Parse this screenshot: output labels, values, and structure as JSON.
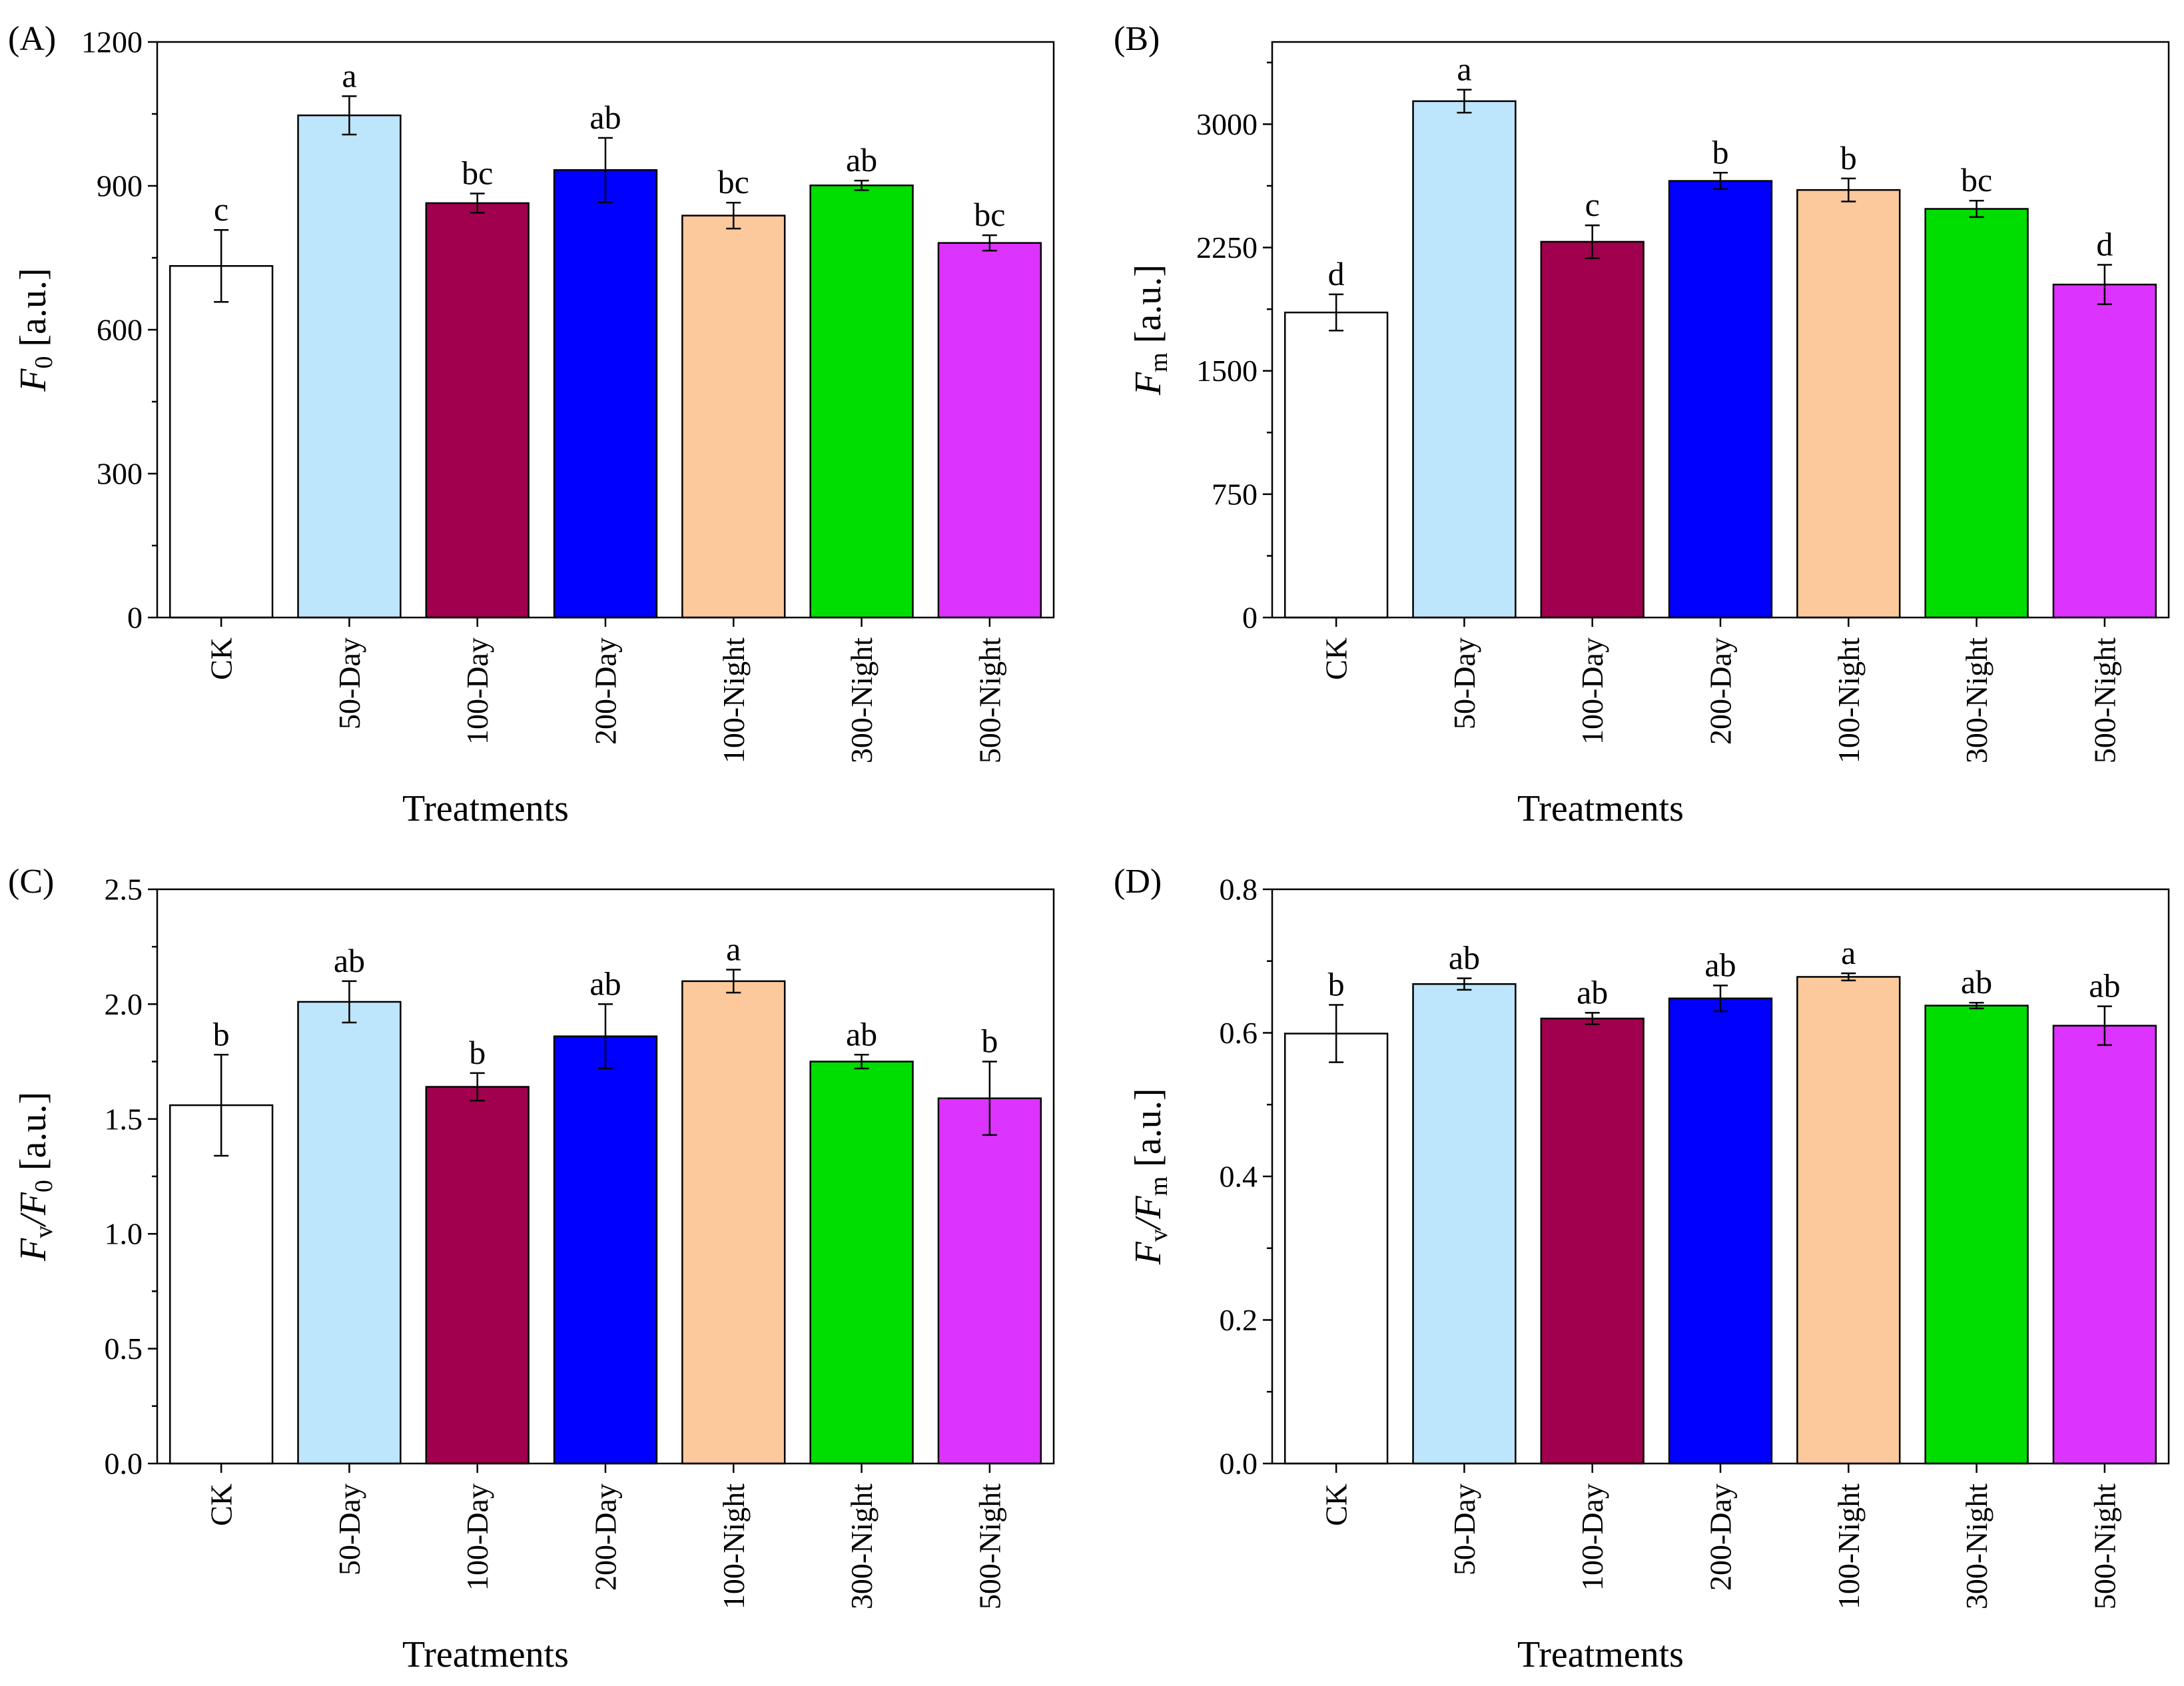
{
  "chart_data": [
    {
      "type": "bar",
      "panel_label": "(A)",
      "categories": [
        "CK",
        "50-Day",
        "100-Day",
        "200-Day",
        "100-Night",
        "300-Night",
        "500-Night"
      ],
      "values": [
        733,
        1047,
        864,
        933,
        838,
        901,
        781
      ],
      "errors": [
        75,
        40,
        20,
        67,
        27,
        10,
        16
      ],
      "letters": [
        "c",
        "a",
        "bc",
        "ab",
        "bc",
        "ab",
        "bc"
      ],
      "colors": [
        "#ffffff",
        "#bde5fb",
        "#a0004e",
        "#0000ff",
        "#fbc99b",
        "#00dd00",
        "#dd33ff"
      ],
      "ylim": [
        0,
        1200
      ],
      "yticks": [
        "0",
        "300",
        "600",
        "900",
        "1200"
      ],
      "ylabel": {
        "main": "F",
        "sub": "0",
        "unit": " [a.u.]"
      },
      "xlabel": "Treatments"
    },
    {
      "type": "bar",
      "panel_label": "(B)",
      "categories": [
        "CK",
        "50-Day",
        "100-Day",
        "200-Day",
        "100-Night",
        "300-Night",
        "500-Night"
      ],
      "values": [
        1855,
        3140,
        2285,
        2655,
        2600,
        2485,
        2025
      ],
      "errors": [
        110,
        70,
        100,
        50,
        70,
        50,
        120
      ],
      "letters": [
        "d",
        "a",
        "c",
        "b",
        "b",
        "bc",
        "d"
      ],
      "colors": [
        "#ffffff",
        "#bde5fb",
        "#a0004e",
        "#0000ff",
        "#fbc99b",
        "#00dd00",
        "#dd33ff"
      ],
      "ylim": [
        0,
        3500
      ],
      "yticks": [
        "0",
        "750",
        "1500",
        "2250",
        "3000"
      ],
      "ylabel": {
        "main": "F",
        "sub": "m",
        "unit": " [a.u.]"
      },
      "xlabel": "Treatments"
    },
    {
      "type": "bar",
      "panel_label": "(C)",
      "categories": [
        "CK",
        "50-Day",
        "100-Day",
        "200-Day",
        "100-Night",
        "300-Night",
        "500-Night"
      ],
      "values": [
        1.56,
        2.01,
        1.64,
        1.86,
        2.1,
        1.75,
        1.59
      ],
      "errors": [
        0.22,
        0.09,
        0.06,
        0.14,
        0.05,
        0.03,
        0.16
      ],
      "letters": [
        "b",
        "ab",
        "b",
        "ab",
        "a",
        "ab",
        "b"
      ],
      "colors": [
        "#ffffff",
        "#bde5fb",
        "#a0004e",
        "#0000ff",
        "#fbc99b",
        "#00dd00",
        "#dd33ff"
      ],
      "ylim": [
        0,
        2.5
      ],
      "yticks": [
        "0.0",
        "0.5",
        "1.0",
        "1.5",
        "2.0",
        "2.5"
      ],
      "ylabel": {
        "main": "F",
        "sub": "v",
        "mid": "/F",
        "sub2": "0",
        "unit": " [a.u.]"
      },
      "xlabel": "Treatments"
    },
    {
      "type": "bar",
      "panel_label": "(D)",
      "categories": [
        "CK",
        "50-Day",
        "100-Day",
        "200-Day",
        "100-Night",
        "300-Night",
        "500-Night"
      ],
      "values": [
        0.599,
        0.668,
        0.62,
        0.648,
        0.678,
        0.638,
        0.61
      ],
      "errors": [
        0.04,
        0.008,
        0.008,
        0.018,
        0.005,
        0.004,
        0.027
      ],
      "letters": [
        "b",
        "ab",
        "ab",
        "ab",
        "a",
        "ab",
        "ab"
      ],
      "colors": [
        "#ffffff",
        "#bde5fb",
        "#a0004e",
        "#0000ff",
        "#fbc99b",
        "#00dd00",
        "#dd33ff"
      ],
      "ylim": [
        0,
        0.8
      ],
      "yticks": [
        "0.0",
        "0.2",
        "0.4",
        "0.6",
        "0.8"
      ],
      "ylabel": {
        "main": "F",
        "sub": "v",
        "mid": "/F",
        "sub2": "m",
        "unit": " [a.u.]"
      },
      "xlabel": "Treatments"
    }
  ]
}
